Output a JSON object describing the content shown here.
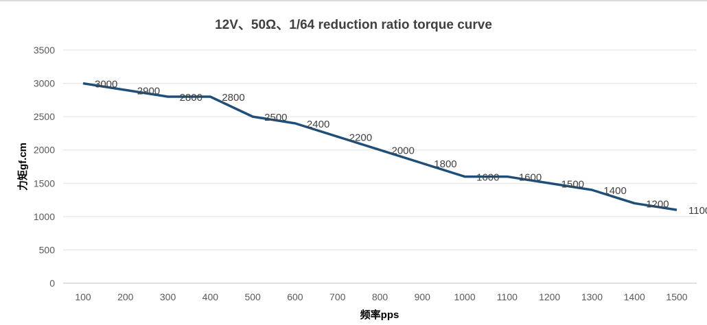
{
  "chart_data": {
    "type": "line",
    "title": "12V、50Ω、1/64 reduction ratio torque curve",
    "xlabel": "频率pps",
    "ylabel": "力矩gf.cm",
    "x": [
      100,
      200,
      300,
      400,
      500,
      600,
      700,
      800,
      900,
      1000,
      1100,
      1200,
      1300,
      1400,
      1500
    ],
    "values": [
      3000,
      2900,
      2800,
      2800,
      2500,
      2400,
      2200,
      2000,
      1800,
      1600,
      1600,
      1500,
      1400,
      1200,
      1100
    ],
    "y_ticks": [
      0,
      500,
      1000,
      1500,
      2000,
      2500,
      3000,
      3500
    ],
    "ylim": [
      0,
      3500
    ],
    "grid": "horizontal",
    "data_labels": true,
    "line_color": "#1f4e79"
  }
}
